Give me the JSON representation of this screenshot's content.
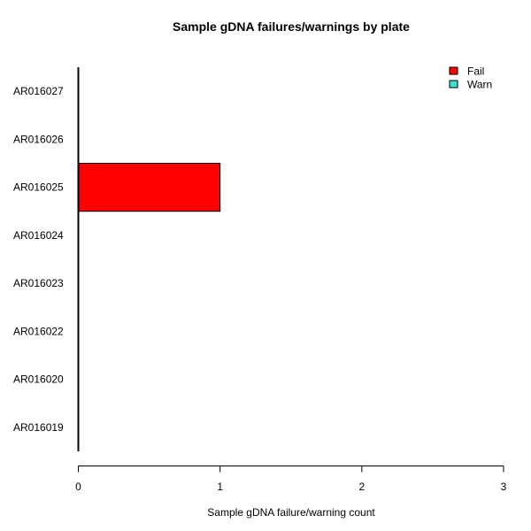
{
  "chart_data": {
    "type": "bar",
    "orientation": "horizontal",
    "stacked": true,
    "title": "Sample gDNA failures/warnings by plate",
    "xlabel": "Sample gDNA failure/warning count",
    "ylabel": "",
    "categories": [
      "AR016019",
      "AR016020",
      "AR016022",
      "AR016023",
      "AR016024",
      "AR016025",
      "AR016026",
      "AR016027"
    ],
    "series": [
      {
        "name": "Fail",
        "color": "#ff0000",
        "values": [
          0,
          0,
          0,
          0,
          0,
          1,
          0,
          0
        ]
      },
      {
        "name": "Warn",
        "color": "#40e0d0",
        "values": [
          0,
          0,
          0,
          0,
          0,
          0,
          0,
          0
        ]
      }
    ],
    "xlim": [
      0,
      3
    ],
    "xticks": [
      0,
      1,
      2,
      3
    ],
    "grid": false,
    "legend_position": "top-right"
  }
}
